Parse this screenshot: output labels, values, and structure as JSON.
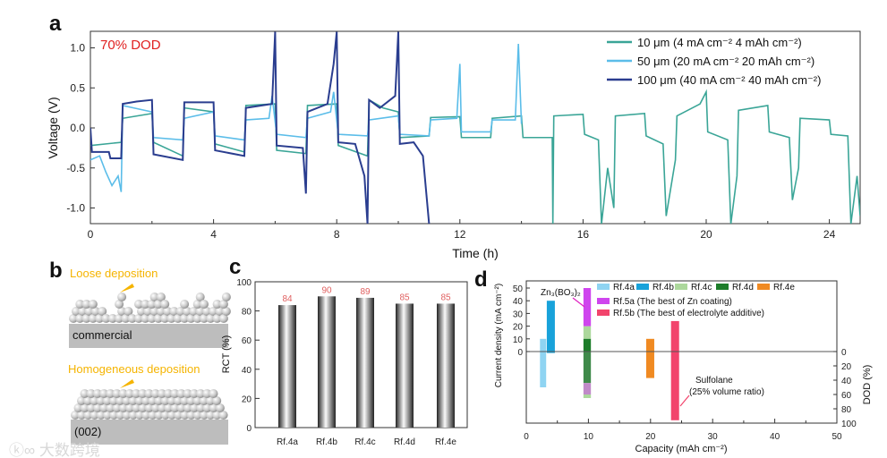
{
  "panel_labels": {
    "a": "a",
    "b": "b",
    "c": "c",
    "d": "d"
  },
  "watermark": "大数跨境",
  "chart_data": [
    {
      "id": "a",
      "type": "line",
      "annotation": "70% DOD",
      "annotation_color": "#e02020",
      "xlabel": "Time (h)",
      "ylabel": "Voltage (V)",
      "xlim": [
        0,
        25
      ],
      "ylim": [
        -1.2,
        1.2
      ],
      "xticks": [
        "0",
        "4",
        "8",
        "12",
        "16",
        "20",
        "24"
      ],
      "xtick_values": [
        0,
        4,
        8,
        12,
        16,
        20,
        24
      ],
      "yticks": [
        "1.0",
        "0.5",
        "0.0",
        "-0.5",
        "-1.0"
      ],
      "ytick_values": [
        1.0,
        0.5,
        0.0,
        -0.5,
        -1.0
      ],
      "legend_position": "top-right",
      "series": [
        {
          "name": "10 μm (4 mA cm⁻²  4 mAh cm⁻²)",
          "color": "#3aa597",
          "points": [
            [
              0,
              -0.22
            ],
            [
              1,
              -0.18
            ],
            [
              1.05,
              0.12
            ],
            [
              2,
              0.18
            ],
            [
              2.05,
              -0.18
            ],
            [
              3,
              -0.35
            ],
            [
              3.05,
              0.25
            ],
            [
              4,
              0.2
            ],
            [
              4.05,
              -0.2
            ],
            [
              5,
              -0.3
            ],
            [
              5.05,
              0.28
            ],
            [
              6,
              0.3
            ],
            [
              6.05,
              -0.28
            ],
            [
              7,
              -0.32
            ],
            [
              7.05,
              0.28
            ],
            [
              8,
              0.3
            ],
            [
              8.05,
              -0.22
            ],
            [
              9,
              -0.35
            ],
            [
              9.05,
              0.35
            ],
            [
              9.5,
              0.25
            ],
            [
              10,
              0.2
            ],
            [
              10.05,
              -0.12
            ],
            [
              11,
              -0.1
            ],
            [
              11.05,
              0.13
            ],
            [
              12,
              0.14
            ],
            [
              12.05,
              -0.12
            ],
            [
              13,
              -0.12
            ],
            [
              13.05,
              0.12
            ],
            [
              14,
              0.15
            ],
            [
              14.05,
              -0.12
            ],
            [
              15,
              -0.12
            ],
            [
              15.02,
              -1.2
            ],
            [
              15.05,
              0.15
            ],
            [
              16,
              0.17
            ],
            [
              16.05,
              -0.08
            ],
            [
              16.5,
              -0.15
            ],
            [
              16.6,
              -1.2
            ],
            [
              16.8,
              -0.5
            ],
            [
              17,
              -1.0
            ],
            [
              17.05,
              0.15
            ],
            [
              18,
              0.18
            ],
            [
              18.05,
              -0.1
            ],
            [
              18.6,
              -0.2
            ],
            [
              18.7,
              -1.1
            ],
            [
              19,
              -0.4
            ],
            [
              19.05,
              0.15
            ],
            [
              19.8,
              0.3
            ],
            [
              20,
              0.45
            ],
            [
              20.05,
              -0.05
            ],
            [
              20.7,
              -0.15
            ],
            [
              20.8,
              -1.2
            ],
            [
              21,
              -0.6
            ],
            [
              21.05,
              0.22
            ],
            [
              22,
              0.28
            ],
            [
              22.05,
              -0.05
            ],
            [
              22.7,
              -0.12
            ],
            [
              22.8,
              -0.9
            ],
            [
              23,
              -0.5
            ],
            [
              23.05,
              0.12
            ],
            [
              24,
              0.1
            ],
            [
              24.05,
              -0.08
            ],
            [
              24.6,
              -0.1
            ],
            [
              24.7,
              -1.2
            ],
            [
              24.9,
              -0.6
            ],
            [
              25,
              -1.1
            ]
          ]
        },
        {
          "name": "50 μm (20 mA cm⁻²  20 mAh cm⁻²)",
          "color": "#5bbde9",
          "points": [
            [
              0,
              -0.4
            ],
            [
              0.3,
              -0.35
            ],
            [
              0.5,
              -0.55
            ],
            [
              0.7,
              -0.72
            ],
            [
              0.9,
              -0.6
            ],
            [
              1,
              -0.8
            ],
            [
              1.05,
              0.28
            ],
            [
              2,
              0.2
            ],
            [
              2.05,
              -0.12
            ],
            [
              3,
              -0.15
            ],
            [
              3.05,
              0.12
            ],
            [
              4,
              0.2
            ],
            [
              4.05,
              -0.1
            ],
            [
              5,
              -0.15
            ],
            [
              5.05,
              0.1
            ],
            [
              5.8,
              0.12
            ],
            [
              5.9,
              0.4
            ],
            [
              6.05,
              -0.08
            ],
            [
              7,
              -0.12
            ],
            [
              7.05,
              0.12
            ],
            [
              7.8,
              0.2
            ],
            [
              7.9,
              0.45
            ],
            [
              8.05,
              -0.08
            ],
            [
              9,
              -0.1
            ],
            [
              9.05,
              0.1
            ],
            [
              10,
              0.15
            ],
            [
              10.05,
              -0.08
            ],
            [
              11,
              -0.1
            ],
            [
              11.05,
              0.1
            ],
            [
              11.9,
              0.12
            ],
            [
              12,
              0.8
            ],
            [
              12.05,
              -0.05
            ],
            [
              13,
              -0.05
            ],
            [
              13.05,
              0.1
            ],
            [
              13.8,
              0.1
            ],
            [
              13.9,
              1.05
            ],
            [
              14,
              0.05
            ]
          ]
        },
        {
          "name": "100 μm (40 mA cm⁻²  40 mAh cm⁻²)",
          "color": "#2a3d8f",
          "points": [
            [
              0,
              0.0
            ],
            [
              0.05,
              -0.3
            ],
            [
              0.6,
              -0.3
            ],
            [
              0.65,
              -0.38
            ],
            [
              1,
              -0.38
            ],
            [
              1.05,
              0.3
            ],
            [
              1.5,
              0.33
            ],
            [
              2,
              0.35
            ],
            [
              2.05,
              -0.33
            ],
            [
              3,
              -0.4
            ],
            [
              3.05,
              0.32
            ],
            [
              4,
              0.32
            ],
            [
              4.05,
              -0.28
            ],
            [
              5,
              -0.35
            ],
            [
              5.05,
              0.25
            ],
            [
              5.9,
              0.3
            ],
            [
              6,
              1.2
            ],
            [
              6.05,
              -0.22
            ],
            [
              6.9,
              -0.25
            ],
            [
              7,
              -0.82
            ],
            [
              7.05,
              0.2
            ],
            [
              7.7,
              0.3
            ],
            [
              7.9,
              0.8
            ],
            [
              8,
              1.2
            ],
            [
              8.05,
              -0.18
            ],
            [
              8.6,
              -0.2
            ],
            [
              8.9,
              -0.6
            ],
            [
              9,
              -1.2
            ],
            [
              9.05,
              0.35
            ],
            [
              9.4,
              0.25
            ],
            [
              9.9,
              0.4
            ],
            [
              10,
              1.2
            ],
            [
              10.05,
              -0.2
            ],
            [
              10.5,
              -0.18
            ],
            [
              10.8,
              -0.35
            ],
            [
              11,
              -1.2
            ]
          ]
        }
      ]
    },
    {
      "id": "b",
      "type": "diagram",
      "top_label": "Loose deposition",
      "top_substrate": "commercial",
      "bottom_label": "Homogeneous deposition",
      "bottom_substrate": "(002)",
      "label_color": "#f5b400"
    },
    {
      "id": "c",
      "type": "bar",
      "ylabel": "RCT (%)",
      "ylim": [
        0,
        100
      ],
      "yticks": [
        "0",
        "20",
        "40",
        "60",
        "80",
        "100"
      ],
      "ytick_values": [
        0,
        20,
        40,
        60,
        80,
        100
      ],
      "categories": [
        "Rf.4a",
        "Rf.4b",
        "Rf.4c",
        "Rf.4d",
        "Rf.4e"
      ],
      "values": [
        84,
        90,
        89,
        85,
        85
      ],
      "value_labels": [
        "84",
        "90",
        "89",
        "85",
        "85"
      ],
      "label_color": "#e06060"
    },
    {
      "id": "d",
      "type": "bar",
      "xlabel": "Capacity (mAh cm⁻²)",
      "ylabel": "Current density (mA cm⁻²)",
      "y2label": "DOD (%)",
      "xlim": [
        0,
        50
      ],
      "xticks": [
        "0",
        "10",
        "20",
        "30",
        "40",
        "50"
      ],
      "xtick_values": [
        0,
        10,
        20,
        30,
        40,
        50
      ],
      "yticks": [
        "0",
        "10",
        "20",
        "30",
        "40",
        "50"
      ],
      "ytick_values": [
        0,
        10,
        20,
        30,
        40,
        50
      ],
      "y2ticks": [
        "0",
        "20",
        "40",
        "60",
        "80",
        "100"
      ],
      "y2tick_values": [
        0,
        20,
        40,
        60,
        80,
        100
      ],
      "legend_position": "top",
      "legend": [
        {
          "name": "Rf.4a",
          "color": "#8fd4f2"
        },
        {
          "name": "Rf.4b",
          "color": "#18a2da"
        },
        {
          "name": "Rf.4c",
          "color": "#acd89c"
        },
        {
          "name": "Rf.4d",
          "color": "#1d7d2a"
        },
        {
          "name": "Rf.4e",
          "color": "#f08a22"
        },
        {
          "name": "Rf.5a (The best of Zn coating)",
          "color": "#cf45ee"
        },
        {
          "name": "Rf.5b (The best of electrolyte additive)",
          "color": "#f2446c"
        }
      ],
      "bars": [
        {
          "ref": "Rf.4a",
          "capacity": [
            2.2,
            3.2
          ],
          "current": [
            0,
            10
          ],
          "dod": [
            0,
            50
          ],
          "color": "#8fd4f2"
        },
        {
          "ref": "Rf.4b",
          "capacity": [
            3.3,
            4.6
          ],
          "current": [
            0,
            40
          ],
          "dod": [
            0,
            2
          ],
          "color": "#18a2da"
        },
        {
          "ref": "Rf.4c",
          "capacity": [
            9.2,
            10.4
          ],
          "current": [
            10,
            20
          ],
          "dod": [
            60,
            65
          ],
          "color": "#acd89c"
        },
        {
          "ref": "Rf.4d",
          "capacity": [
            9.2,
            10.4
          ],
          "current": [
            0,
            10
          ],
          "dod": [
            0,
            44
          ],
          "color": "#1d7d2a"
        },
        {
          "ref": "Rf.5a",
          "capacity": [
            9.2,
            10.4
          ],
          "current": [
            20,
            50
          ],
          "dod": [
            44,
            60
          ],
          "color": "#cf45ee"
        },
        {
          "ref": "Rf.4e",
          "capacity": [
            19.3,
            20.6
          ],
          "current": [
            0,
            10
          ],
          "dod": [
            0,
            37
          ],
          "color": "#f08a22"
        },
        {
          "ref": "Rf.5b",
          "capacity": [
            23.3,
            24.6
          ],
          "current": [
            0,
            24
          ],
          "dod": [
            0,
            96
          ],
          "color": "#f2446c"
        }
      ],
      "annotations": {
        "zn": "Zn₃(BO₃)₂",
        "sulfolane": "Sulfolane",
        "ratio": "(25% volume ratio)"
      }
    }
  ]
}
